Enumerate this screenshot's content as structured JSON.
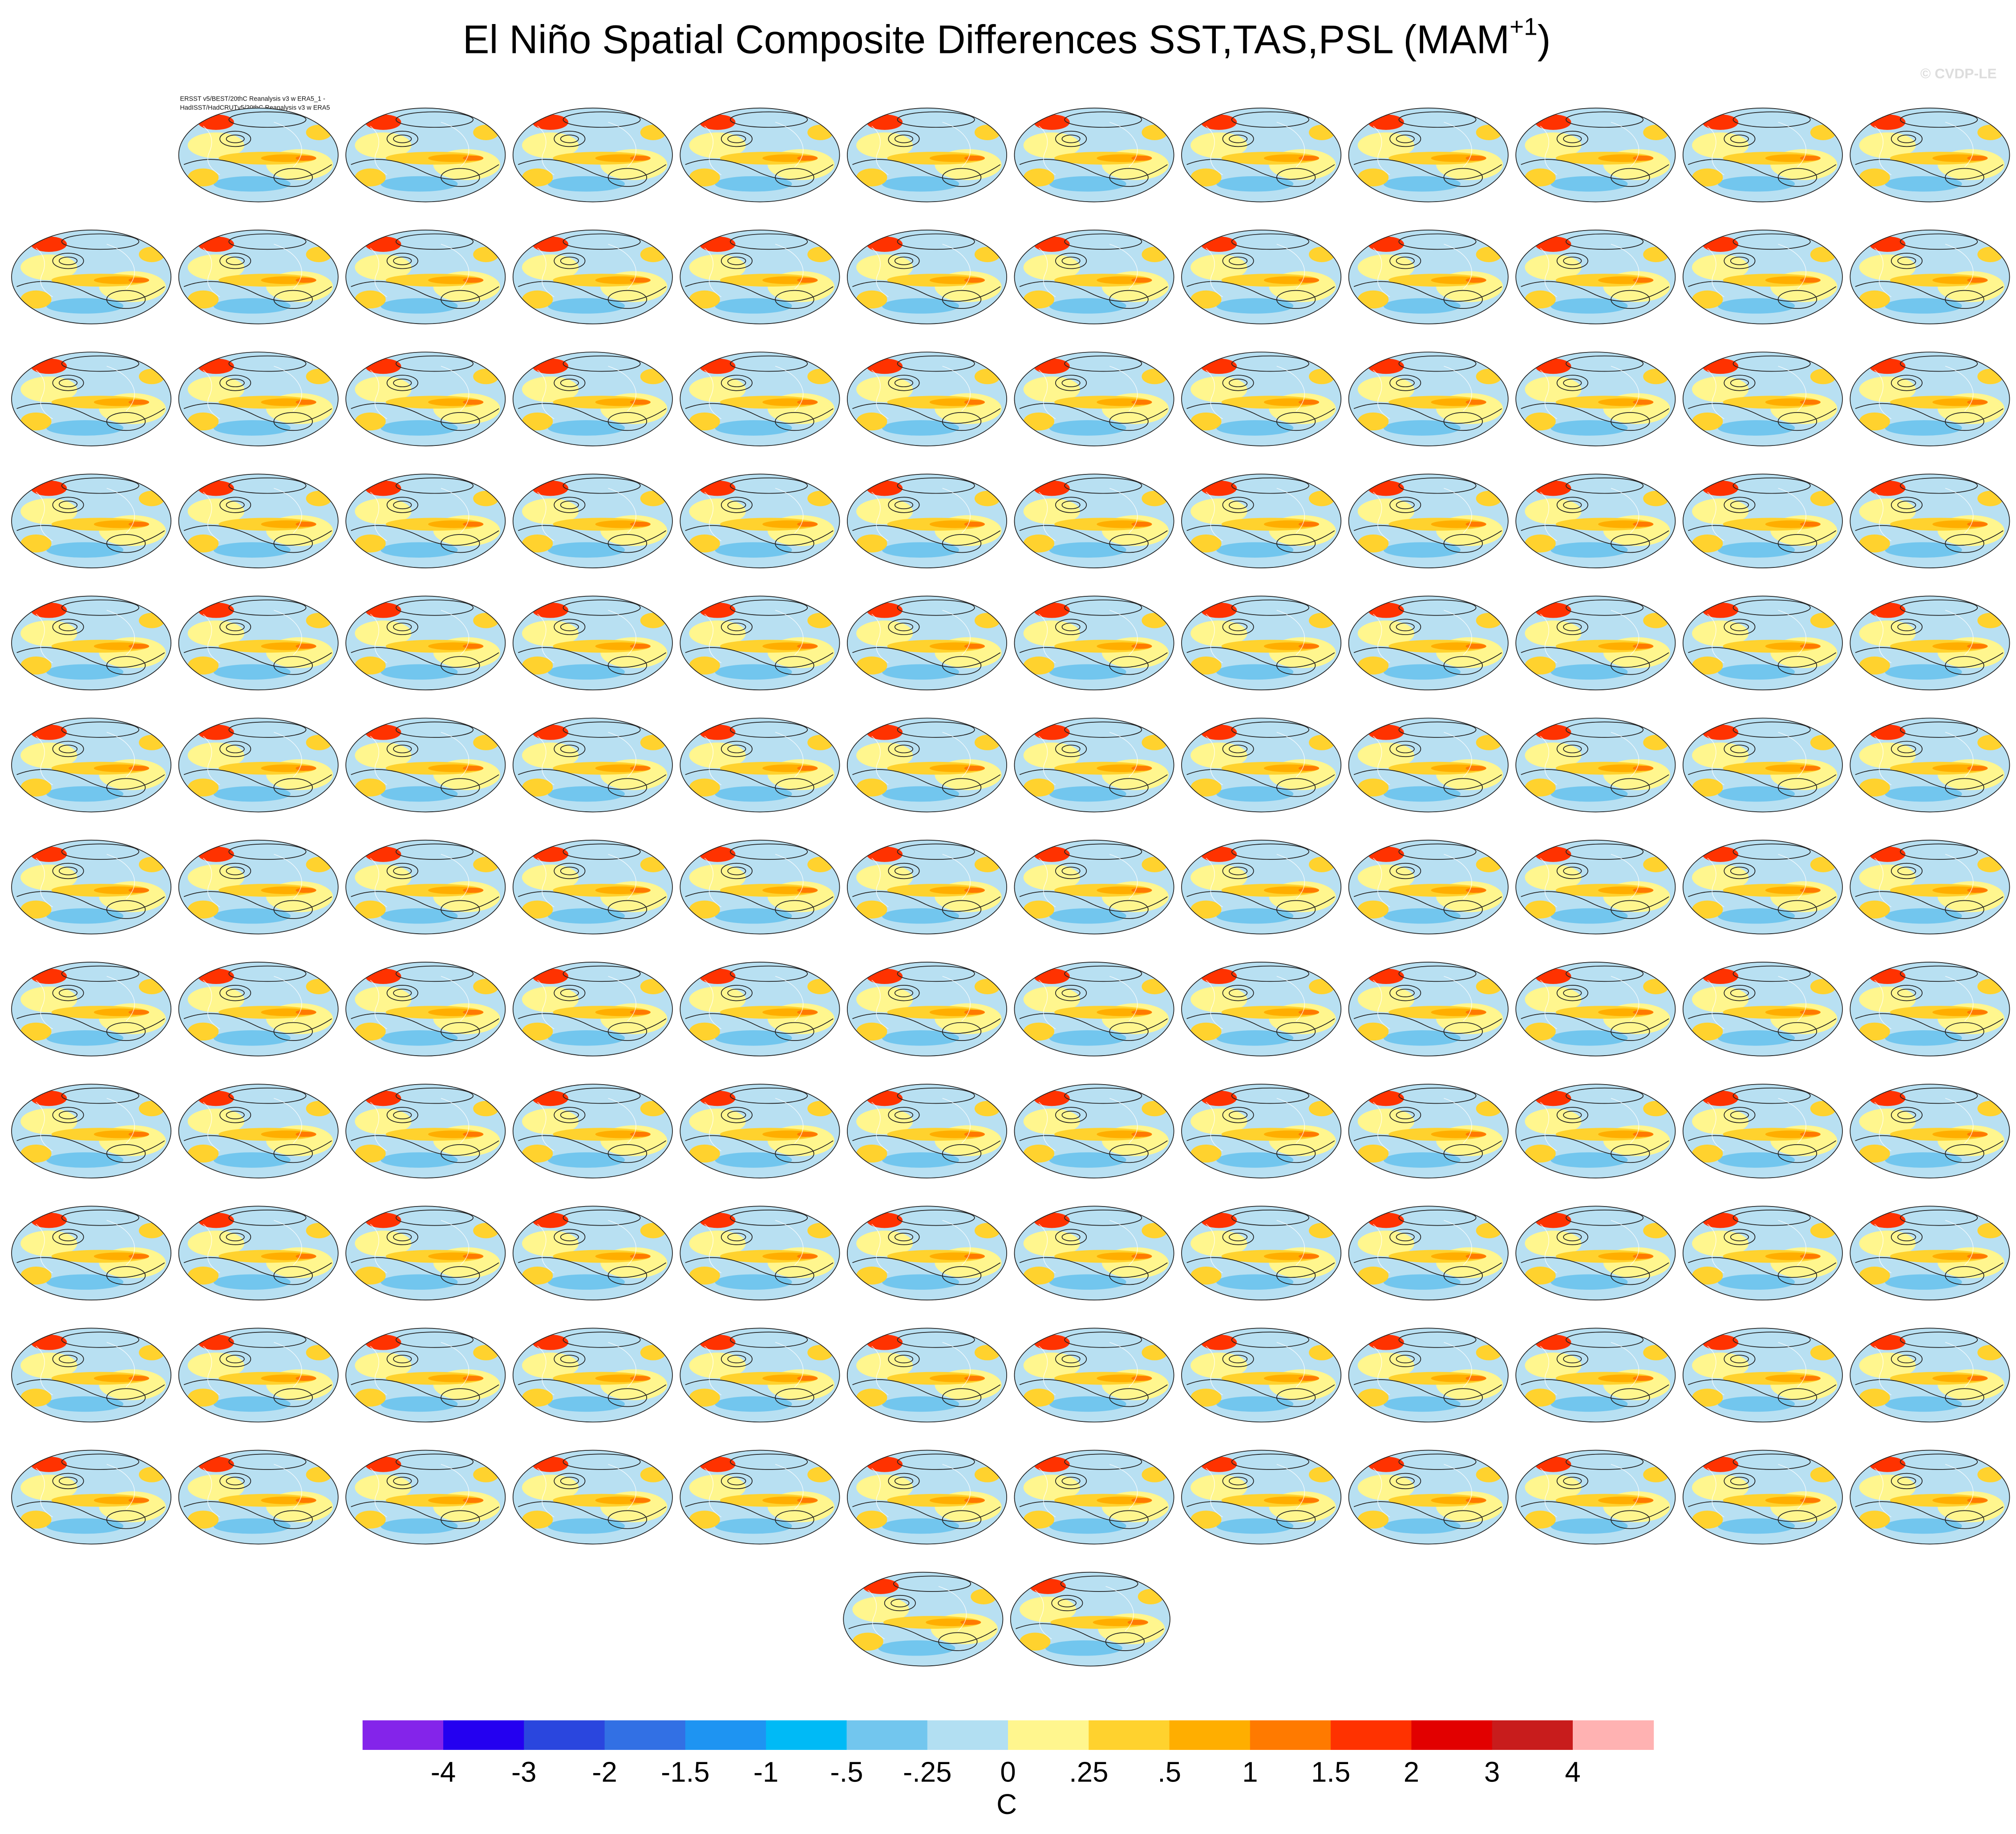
{
  "chart_data": {
    "type": "colorbar",
    "title": "El Niño Spatial Composite Differences SST,TAS,PSL (MAM",
    "title_superscript": "+1",
    "title_end": ")",
    "watermark": "© CVDP-LE",
    "first_panel_label": [
      "ERSST v5/BEST/20thC Reanalysis v3 w ERA5_1 -",
      "HadISST/HadCRUTv5/20thC Reanalysis v3 w ERA5"
    ],
    "levels": [
      -4,
      -3,
      -2,
      -1.5,
      -1,
      {
        "value": -0.5,
        "label": "-.5"
      },
      {
        "value": -0.25,
        "label": "-.25"
      },
      0,
      {
        "value": 0.25,
        "label": ".25"
      },
      {
        "value": 0.5,
        "label": ".5"
      },
      1,
      1.5,
      2,
      3,
      4
    ],
    "colors": [
      "#8424ea",
      "#2400f0",
      "#2a46de",
      "#3270e4",
      "#1e94f2",
      "#00baf6",
      "#72c6ee",
      "#b2dff2",
      "#fff68e",
      "#ffd22e",
      "#ffae00",
      "#ff7a00",
      "#ff3200",
      "#e20000",
      "#c81c1c",
      "#ffb2b2"
    ],
    "unit": "C"
  }
}
